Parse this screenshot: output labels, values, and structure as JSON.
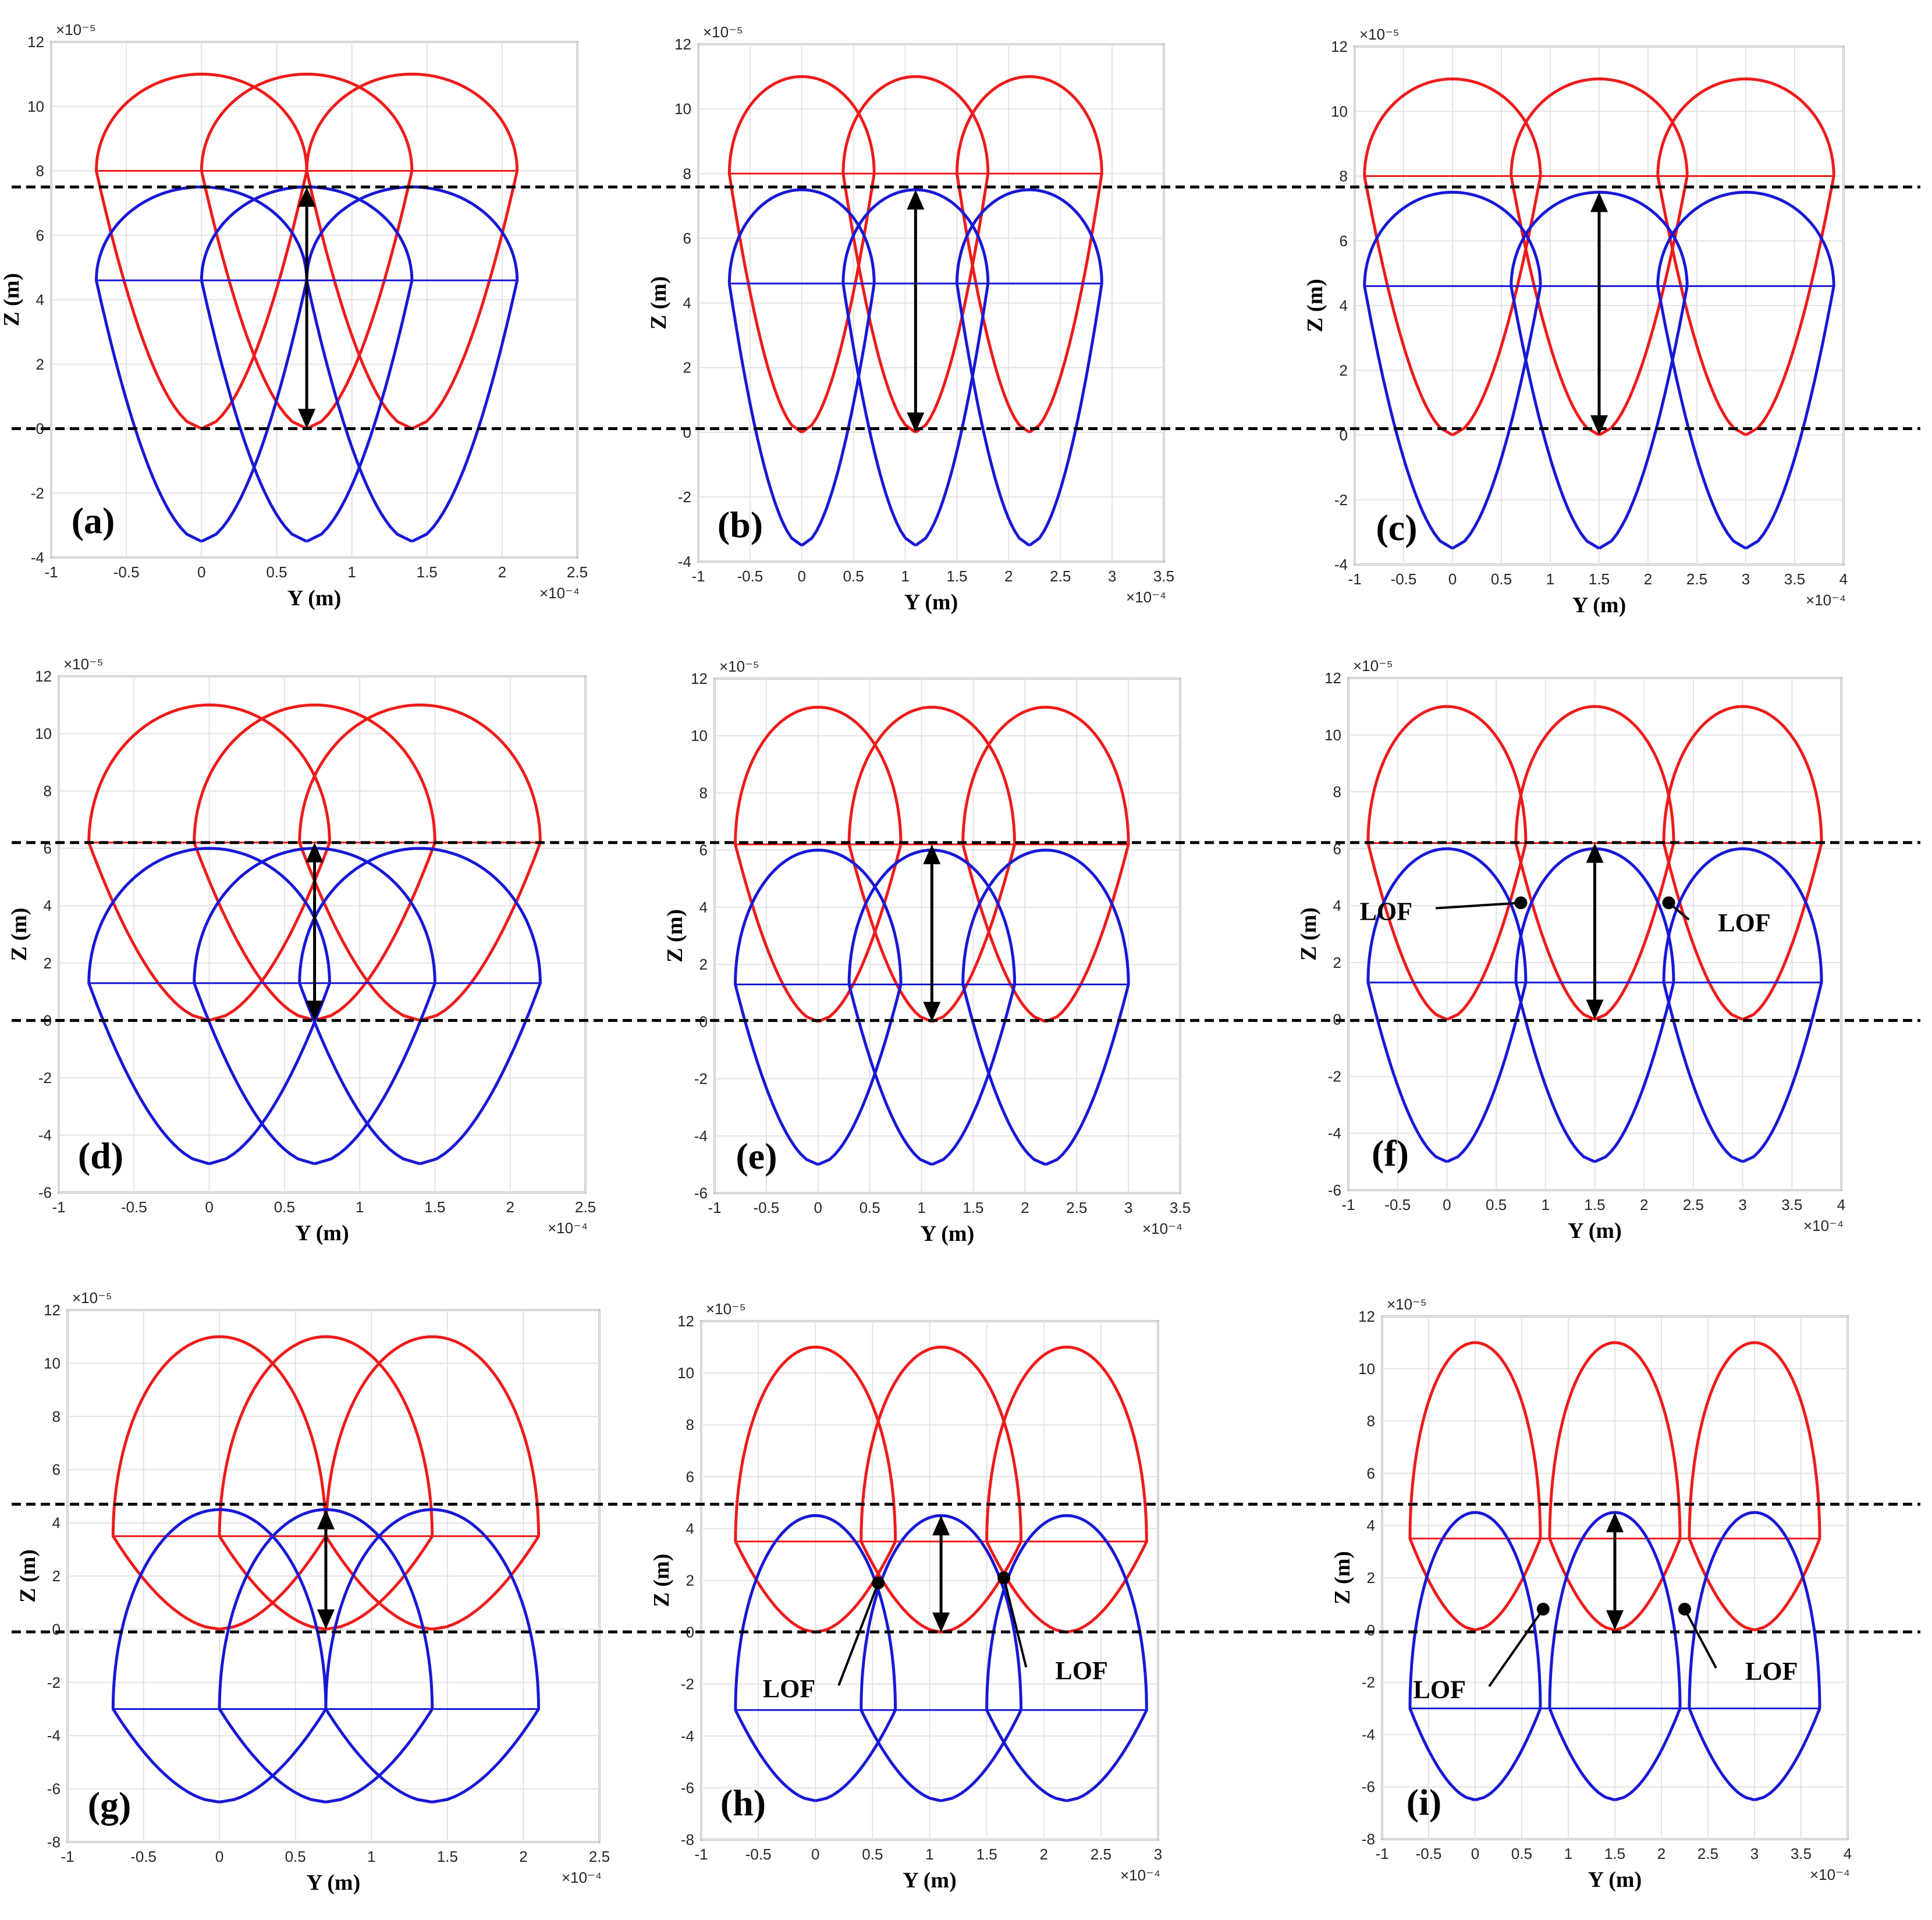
{
  "colors": {
    "red": "#ee1b1b",
    "blue": "#1818d6",
    "dashed": "#000000",
    "grid": "#e3e3e3"
  },
  "axis": {
    "xlabel": "Y (m)",
    "ylabel": "Z (m)",
    "x_exponent": "×10⁻⁴",
    "y_exponent": "×10⁻⁵"
  },
  "lof_text": "LOF",
  "chart_data": [
    {
      "panel": "(a)",
      "type": "line",
      "xlim": [
        -1,
        2.5
      ],
      "ylim": [
        -4,
        12
      ],
      "xticks": [
        "-1",
        "-0.5",
        "0",
        "0.5",
        "1",
        "1.5",
        "2",
        "2.5"
      ],
      "yticks": [
        "-4",
        "-2",
        "0",
        "2",
        "4",
        "6",
        "8",
        "10",
        "12"
      ],
      "grid": true,
      "centers": [
        0,
        0.7,
        1.4
      ],
      "hatch": 0.7,
      "red": {
        "top": 11,
        "flat": 8,
        "bottom": 0
      },
      "blue": {
        "top": 7.5,
        "flat": 4.6,
        "bottom": -3.5
      },
      "dashed_levels": [
        7.5,
        0
      ],
      "arrow": {
        "x": 0.7,
        "from": 0,
        "to": 7.5
      },
      "lof": []
    },
    {
      "panel": "(b)",
      "type": "line",
      "xlim": [
        -1,
        3.5
      ],
      "ylim": [
        -4,
        12
      ],
      "xticks": [
        "-1",
        "-0.5",
        "0",
        "0.5",
        "1",
        "1.5",
        "2",
        "2.5",
        "3",
        "3.5"
      ],
      "yticks": [
        "-4",
        "-2",
        "0",
        "2",
        "4",
        "6",
        "8",
        "10",
        "12"
      ],
      "grid": true,
      "centers": [
        0,
        1.1,
        2.2
      ],
      "hatch": 0.7,
      "red": {
        "top": 11,
        "flat": 8,
        "bottom": 0
      },
      "blue": {
        "top": 7.5,
        "flat": 4.6,
        "bottom": -3.5
      },
      "dashed_levels": [
        7.5,
        0
      ],
      "arrow": {
        "x": 1.1,
        "from": 0,
        "to": 7.5
      },
      "lof": []
    },
    {
      "panel": "(c)",
      "type": "line",
      "xlim": [
        -1,
        4
      ],
      "ylim": [
        -4,
        12
      ],
      "xticks": [
        "-1",
        "-0.5",
        "0",
        "0.5",
        "1",
        "1.5",
        "2",
        "2.5",
        "3",
        "3.5",
        "4"
      ],
      "yticks": [
        "-4",
        "-2",
        "0",
        "2",
        "4",
        "6",
        "8",
        "10",
        "12"
      ],
      "grid": true,
      "centers": [
        0,
        1.5,
        3.0
      ],
      "hatch": 0.9,
      "red": {
        "top": 11,
        "flat": 8,
        "bottom": 0
      },
      "blue": {
        "top": 7.5,
        "flat": 4.6,
        "bottom": -3.5
      },
      "dashed_levels": [
        7.5,
        0
      ],
      "arrow": {
        "x": 1.5,
        "from": 0,
        "to": 7.5
      },
      "lof": []
    },
    {
      "panel": "(d)",
      "type": "line",
      "xlim": [
        -1,
        2.5
      ],
      "ylim": [
        -6,
        12
      ],
      "xticks": [
        "-1",
        "-0.5",
        "0",
        "0.5",
        "1",
        "1.5",
        "2",
        "2.5"
      ],
      "yticks": [
        "-6",
        "-4",
        "-2",
        "0",
        "2",
        "4",
        "6",
        "8",
        "10",
        "12"
      ],
      "grid": true,
      "centers": [
        0,
        0.7,
        1.4
      ],
      "hatch": 0.8,
      "red": {
        "top": 11,
        "flat": 6.2,
        "bottom": 0
      },
      "blue": {
        "top": 6,
        "flat": 1.3,
        "bottom": -5
      },
      "dashed_levels": [
        6.2,
        0
      ],
      "arrow": {
        "x": 0.7,
        "from": 0,
        "to": 6.2
      },
      "lof": []
    },
    {
      "panel": "(e)",
      "type": "line",
      "xlim": [
        -1,
        3.5
      ],
      "ylim": [
        -6,
        12
      ],
      "xticks": [
        "-1",
        "-0.5",
        "0",
        "0.5",
        "1",
        "1.5",
        "2",
        "2.5",
        "3",
        "3.5"
      ],
      "yticks": [
        "-6",
        "-4",
        "-2",
        "0",
        "2",
        "4",
        "6",
        "8",
        "10",
        "12"
      ],
      "grid": true,
      "centers": [
        0,
        1.1,
        2.2
      ],
      "hatch": 0.8,
      "red": {
        "top": 11,
        "flat": 6.2,
        "bottom": 0
      },
      "blue": {
        "top": 6,
        "flat": 1.3,
        "bottom": -5
      },
      "dashed_levels": [
        6.2,
        0
      ],
      "arrow": {
        "x": 1.1,
        "from": 0,
        "to": 6.2
      },
      "lof": []
    },
    {
      "panel": "(f)",
      "type": "line",
      "xlim": [
        -1,
        4
      ],
      "ylim": [
        -6,
        12
      ],
      "xticks": [
        "-1",
        "-0.5",
        "0",
        "0.5",
        "1",
        "1.5",
        "2",
        "2.5",
        "3",
        "3.5",
        "4"
      ],
      "yticks": [
        "-6",
        "-4",
        "-2",
        "0",
        "2",
        "4",
        "6",
        "8",
        "10",
        "12"
      ],
      "grid": true,
      "centers": [
        0,
        1.5,
        3.0
      ],
      "hatch": 0.8,
      "red": {
        "top": 11,
        "flat": 6.2,
        "bottom": 0
      },
      "blue": {
        "top": 6,
        "flat": 1.3,
        "bottom": -5
      },
      "dashed_levels": [
        6.2,
        0
      ],
      "arrow": {
        "x": 1.5,
        "from": 0,
        "to": 6.2
      },
      "lof": [
        {
          "dot": [
            0.75,
            4.1
          ],
          "text": [
            -0.35,
            3.5
          ],
          "side": "left"
        },
        {
          "dot": [
            2.25,
            4.1
          ],
          "text": [
            2.75,
            3.1
          ],
          "side": "right"
        }
      ]
    },
    {
      "panel": "(g)",
      "type": "line",
      "xlim": [
        -1,
        2.5
      ],
      "ylim": [
        -8,
        12
      ],
      "xticks": [
        "-1",
        "-0.5",
        "0",
        "0.5",
        "1",
        "1.5",
        "2",
        "2.5"
      ],
      "yticks": [
        "-8",
        "-6",
        "-4",
        "-2",
        "0",
        "2",
        "4",
        "6",
        "8",
        "10",
        "12"
      ],
      "grid": true,
      "centers": [
        0,
        0.7,
        1.4
      ],
      "hatch": 0.7,
      "red": {
        "top": 11,
        "flat": 3.5,
        "bottom": 0
      },
      "blue": {
        "top": 4.5,
        "flat": -3,
        "bottom": -6.5
      },
      "dashed_levels": [
        4.7,
        -0.1
      ],
      "arrow": {
        "x": 0.7,
        "from": 0,
        "to": 4.5
      },
      "lof": []
    },
    {
      "panel": "(h)",
      "type": "line",
      "xlim": [
        -1,
        3
      ],
      "ylim": [
        -8,
        12
      ],
      "xticks": [
        "-1",
        "-0.5",
        "0",
        "0.5",
        "1",
        "1.5",
        "2",
        "2.5",
        "3"
      ],
      "yticks": [
        "-8",
        "-6",
        "-4",
        "-2",
        "0",
        "2",
        "4",
        "6",
        "8",
        "10",
        "12"
      ],
      "grid": true,
      "centers": [
        0,
        1.1,
        2.2
      ],
      "hatch": 0.7,
      "red": {
        "top": 11,
        "flat": 3.5,
        "bottom": 0
      },
      "blue": {
        "top": 4.5,
        "flat": -3,
        "bottom": -6.5
      },
      "dashed_levels": [
        4.7,
        -0.1
      ],
      "arrow": {
        "x": 1.1,
        "from": 0,
        "to": 4.5
      },
      "lof": [
        {
          "dot": [
            0.55,
            1.9
          ],
          "text": [
            0.0,
            -2.5
          ],
          "side": "left"
        },
        {
          "dot": [
            1.65,
            2.1
          ],
          "text": [
            2.1,
            -1.8
          ],
          "side": "right"
        }
      ]
    },
    {
      "panel": "(i)",
      "type": "line",
      "xlim": [
        -1,
        4
      ],
      "ylim": [
        -8,
        12
      ],
      "xticks": [
        "-1",
        "-0.5",
        "0",
        "0.5",
        "1",
        "1.5",
        "2",
        "2.5",
        "3",
        "3.5",
        "4"
      ],
      "yticks": [
        "-8",
        "-6",
        "-4",
        "-2",
        "0",
        "2",
        "4",
        "6",
        "8",
        "10",
        "12"
      ],
      "grid": true,
      "centers": [
        0,
        1.5,
        3.0
      ],
      "hatch": 0.7,
      "red": {
        "top": 11,
        "flat": 3.5,
        "bottom": 0
      },
      "blue": {
        "top": 4.5,
        "flat": -3,
        "bottom": -6.5
      },
      "dashed_levels": [
        4.7,
        -0.3
      ],
      "arrow": {
        "x": 1.5,
        "from": 0,
        "to": 4.5
      },
      "lof": [
        {
          "dot": [
            0.73,
            0.8
          ],
          "text": [
            -0.1,
            -2.6
          ],
          "side": "left"
        },
        {
          "dot": [
            2.25,
            0.8
          ],
          "text": [
            2.9,
            -1.9
          ],
          "side": "right"
        }
      ]
    }
  ]
}
